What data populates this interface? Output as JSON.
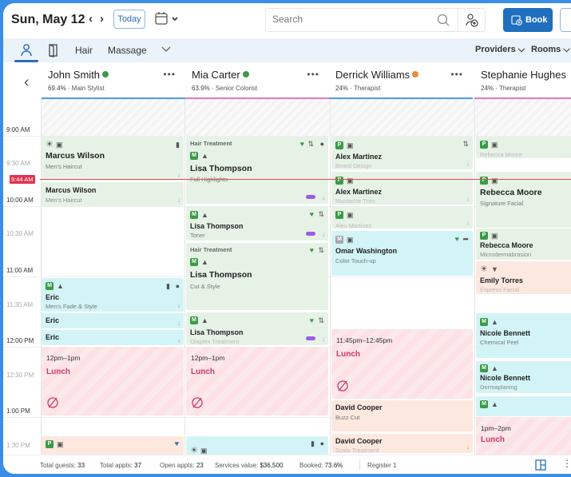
{
  "header": {
    "date": "Sun, May 12",
    "prev_icon": "chevron-left",
    "next_icon": "chevron-right",
    "today_label": "Today",
    "calendar_icon": "calendar-icon",
    "search_placeholder": "Search",
    "book_label": "Book"
  },
  "filters": {
    "view_icons": [
      "person-icon",
      "door-icon"
    ],
    "categories": [
      "Hair",
      "Massage"
    ],
    "providers_label": "Providers",
    "rooms_label": "Rooms"
  },
  "providers": [
    {
      "name": "John Smith",
      "percent": "69.4%",
      "role": "Main Stylist",
      "status_color": "#3a9a48",
      "bar_color": "#4a9ee6"
    },
    {
      "name": "Mia Carter",
      "percent": "63.9%",
      "role": "Senior Colorist",
      "status_color": "#3a9a48",
      "bar_color": "#e07ac0"
    },
    {
      "name": "Derrick Williams",
      "percent": "24%",
      "role": "Therapist",
      "status_color": "#ef8a3a",
      "bar_color": "#4a9ee6"
    },
    {
      "name": "Stephanie Hughes",
      "percent": "24%",
      "role": "Therapist",
      "status_color": "",
      "bar_color": "#e07ac0"
    }
  ],
  "times": [
    "9:00 AM",
    "9:30 AM",
    "10:00 AM",
    "10:30 AM",
    "11:00 AM",
    "11:30 AM",
    "12:00 PM",
    "12:30 PM",
    "1:00 PM",
    "1:30 PM"
  ],
  "now_time": "9:44 AM",
  "columns": {
    "john": [
      {
        "client": "Marcus Wilson",
        "service": "Men's Haircut"
      },
      {
        "client": "Marcus Wilson",
        "service": "Men's Haircut"
      },
      {
        "client": "Eric",
        "service": "Men's Fade & Style",
        "badge": "M"
      },
      {
        "client": "Eric",
        "service": ""
      },
      {
        "client": "Eric",
        "service": ""
      },
      {
        "lunch_time": "12pm–1pm",
        "lunch_title": "Lunch"
      },
      {
        "badge": "P"
      }
    ],
    "mia": [
      {
        "category": "Hair Treatment",
        "client": "Lisa Thompson",
        "service": "Full Highlights",
        "badge": "M"
      },
      {
        "client": "Lisa Thompson",
        "service": "Toner",
        "badge": "M"
      },
      {
        "category": "Hair Treatment",
        "client": "Lisa Thompson",
        "service": "Cut & Style",
        "badge": "M"
      },
      {
        "client": "Lisa Thompson",
        "service": "Olaplex Treatment",
        "badge": "M"
      },
      {
        "lunch_time": "12pm–1pm",
        "lunch_title": "Lunch"
      }
    ],
    "derrick": [
      {
        "client": "Alex Martinez",
        "service": "Beard Design",
        "badge": "P"
      },
      {
        "client": "Alex Martinez",
        "service": "Mustache Trim",
        "badge": "P"
      },
      {
        "client": "",
        "service": "Alex Martinez",
        "badge": "P"
      },
      {
        "client": "Omar Washington",
        "service": "Color Touch-up",
        "badge": "M"
      },
      {
        "lunch_time": "11:45pm–12:45pm",
        "lunch_title": "Lunch"
      },
      {
        "client": "David Cooper",
        "service": "Buzz Cut"
      },
      {
        "client": "David Cooper",
        "service": "Scalp Treatment"
      }
    ],
    "stephanie": [
      {
        "client": "",
        "service": "Rebecca Moore",
        "badge": "P"
      },
      {
        "client": "Rebecca Moore",
        "service": "Signature Facial",
        "badge": "P"
      },
      {
        "client": "Rebecca Moore",
        "service": "Microdermabrasion",
        "badge": "P"
      },
      {
        "client": "Emily Torres",
        "service": "Express Facial"
      },
      {
        "client": "Nicole Bennett",
        "service": "Chemical Peel",
        "badge": "M"
      },
      {
        "client": "Nicole Bennett",
        "service": "Dermaplaning",
        "badge": "M"
      },
      {
        "badge": "M"
      },
      {
        "lunch_time": "1pm–2pm",
        "lunch_title": "Lunch"
      }
    ]
  },
  "footer": {
    "total_guests_label": "Total guests:",
    "total_guests": "33",
    "total_appts_label": "Total appts:",
    "total_appts": "37",
    "open_appts_label": "Open appts:",
    "open_appts": "23",
    "services_value_label": "Services value:",
    "services_value": "$36,500",
    "booked_label": "Booked:",
    "booked": "73.6%",
    "register": "Register 1"
  }
}
